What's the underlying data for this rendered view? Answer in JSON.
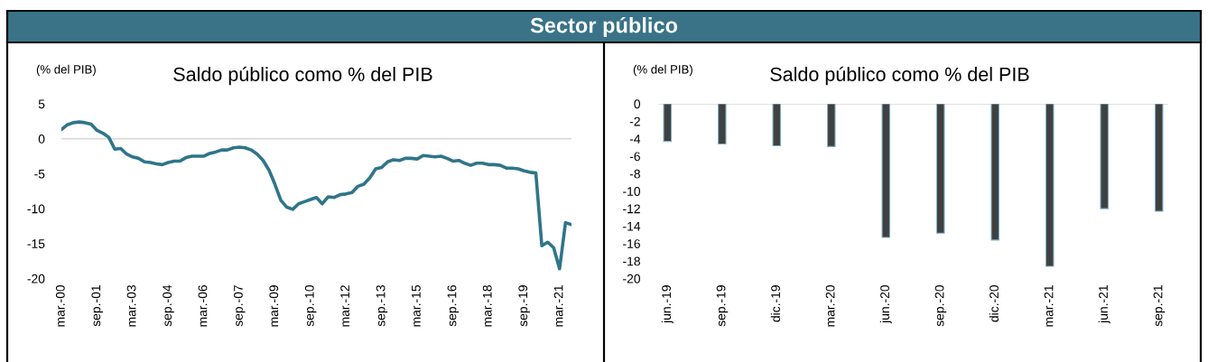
{
  "chart_data": [
    {
      "type": "line",
      "title": "Saldo público como % del PIB",
      "ylabel": "(% del PIB)",
      "annotations": [
        "Sector público"
      ],
      "x": [
        "2000-03",
        "2000-06",
        "2000-09",
        "2000-12",
        "2001-03",
        "2001-06",
        "2001-09",
        "2001-12",
        "2002-03",
        "2002-06",
        "2002-09",
        "2002-12",
        "2003-03",
        "2003-06",
        "2003-09",
        "2003-12",
        "2004-03",
        "2004-06",
        "2004-09",
        "2004-12",
        "2005-03",
        "2005-06",
        "2005-09",
        "2005-12",
        "2006-03",
        "2006-06",
        "2006-09",
        "2006-12",
        "2007-03",
        "2007-06",
        "2007-09",
        "2007-12",
        "2008-03",
        "2008-06",
        "2008-09",
        "2008-12",
        "2009-03",
        "2009-06",
        "2009-09",
        "2009-12",
        "2010-03",
        "2010-06",
        "2010-09",
        "2010-12",
        "2011-03",
        "2011-06",
        "2011-09",
        "2011-12",
        "2012-03",
        "2012-06",
        "2012-09",
        "2012-12",
        "2013-03",
        "2013-06",
        "2013-09",
        "2013-12",
        "2014-03",
        "2014-06",
        "2014-09",
        "2014-12",
        "2015-03",
        "2015-06",
        "2015-09",
        "2015-12",
        "2016-03",
        "2016-06",
        "2016-09",
        "2016-12",
        "2017-03",
        "2017-06",
        "2017-09",
        "2017-12",
        "2018-03",
        "2018-06",
        "2018-09",
        "2018-12",
        "2019-03",
        "2019-06",
        "2019-09",
        "2019-12",
        "2020-03",
        "2020-06",
        "2020-09",
        "2020-12",
        "2021-03",
        "2021-06",
        "2021-09"
      ],
      "series": [
        {
          "color": "#2f758a",
          "values": [
            1.3,
            2.0,
            2.3,
            2.4,
            2.3,
            2.1,
            1.2,
            0.8,
            0.2,
            -1.5,
            -1.4,
            -2.2,
            -2.6,
            -2.8,
            -3.3,
            -3.4,
            -3.6,
            -3.7,
            -3.4,
            -3.2,
            -3.2,
            -2.7,
            -2.5,
            -2.5,
            -2.5,
            -2.1,
            -1.9,
            -1.6,
            -1.6,
            -1.3,
            -1.2,
            -1.3,
            -1.6,
            -2.2,
            -3.1,
            -4.5,
            -6.5,
            -8.8,
            -9.8,
            -10.1,
            -9.3,
            -9.0,
            -8.7,
            -8.4,
            -9.3,
            -8.3,
            -8.4,
            -8.0,
            -7.9,
            -7.7,
            -6.8,
            -6.5,
            -5.6,
            -4.3,
            -4.1,
            -3.3,
            -3.0,
            -3.1,
            -2.8,
            -2.8,
            -2.9,
            -2.4,
            -2.5,
            -2.6,
            -2.5,
            -2.8,
            -3.2,
            -3.1,
            -3.5,
            -3.8,
            -3.5,
            -3.5,
            -3.7,
            -3.7,
            -3.8,
            -4.2,
            -4.2,
            -4.3,
            -4.6,
            -4.8,
            -4.9,
            -15.3,
            -14.8,
            -15.6,
            -18.6,
            -12.0,
            -12.3
          ]
        }
      ],
      "xlim": [
        "2000-03",
        "2021-09"
      ],
      "xticks": [
        {
          "value": "2000-03",
          "label": "mar.-00"
        },
        {
          "value": "2001-09",
          "label": "sep.-01"
        },
        {
          "value": "2003-03",
          "label": "mar.-03"
        },
        {
          "value": "2004-09",
          "label": "sep.-04"
        },
        {
          "value": "2006-03",
          "label": "mar.-06"
        },
        {
          "value": "2007-09",
          "label": "sep.-07"
        },
        {
          "value": "2009-03",
          "label": "mar.-09"
        },
        {
          "value": "2010-09",
          "label": "sep.-10"
        },
        {
          "value": "2012-03",
          "label": "mar.-12"
        },
        {
          "value": "2013-09",
          "label": "sep.-13"
        },
        {
          "value": "2015-03",
          "label": "mar.-15"
        },
        {
          "value": "2016-09",
          "label": "sep.-16"
        },
        {
          "value": "2018-03",
          "label": "mar.-18"
        },
        {
          "value": "2019-09",
          "label": "sep.-19"
        },
        {
          "value": "2021-03",
          "label": "mar.-21"
        }
      ],
      "ylim": [
        -20,
        5
      ],
      "yticks": [
        5,
        0,
        -5,
        -10,
        -15,
        -20
      ],
      "line_style": "solid",
      "ref_lines": [
        {
          "axis": "y",
          "value": 0,
          "color": "#d9d9d9"
        }
      ]
    },
    {
      "type": "bar",
      "title": "Saldo público como % del PIB",
      "ylabel": "(% del PIB)",
      "categories": [
        "jun.-19",
        "sep.-19",
        "dic.-19",
        "mar.-20",
        "jun.-20",
        "sep.-20",
        "dic.-20",
        "mar.-21",
        "jun.-21",
        "sep.-21"
      ],
      "series": [
        {
          "color": "#404040",
          "values": [
            -4.3,
            -4.6,
            -4.8,
            -4.9,
            -15.3,
            -14.8,
            -15.6,
            -18.6,
            -12.0,
            -12.3
          ]
        }
      ],
      "ylim": [
        -20,
        0
      ],
      "yticks": [
        0,
        -2,
        -4,
        -6,
        -8,
        -10,
        -12,
        -14,
        -16,
        -18,
        -20
      ],
      "ref_lines": [
        {
          "axis": "y",
          "value": 0,
          "color": "#d9d9d9"
        }
      ]
    }
  ]
}
